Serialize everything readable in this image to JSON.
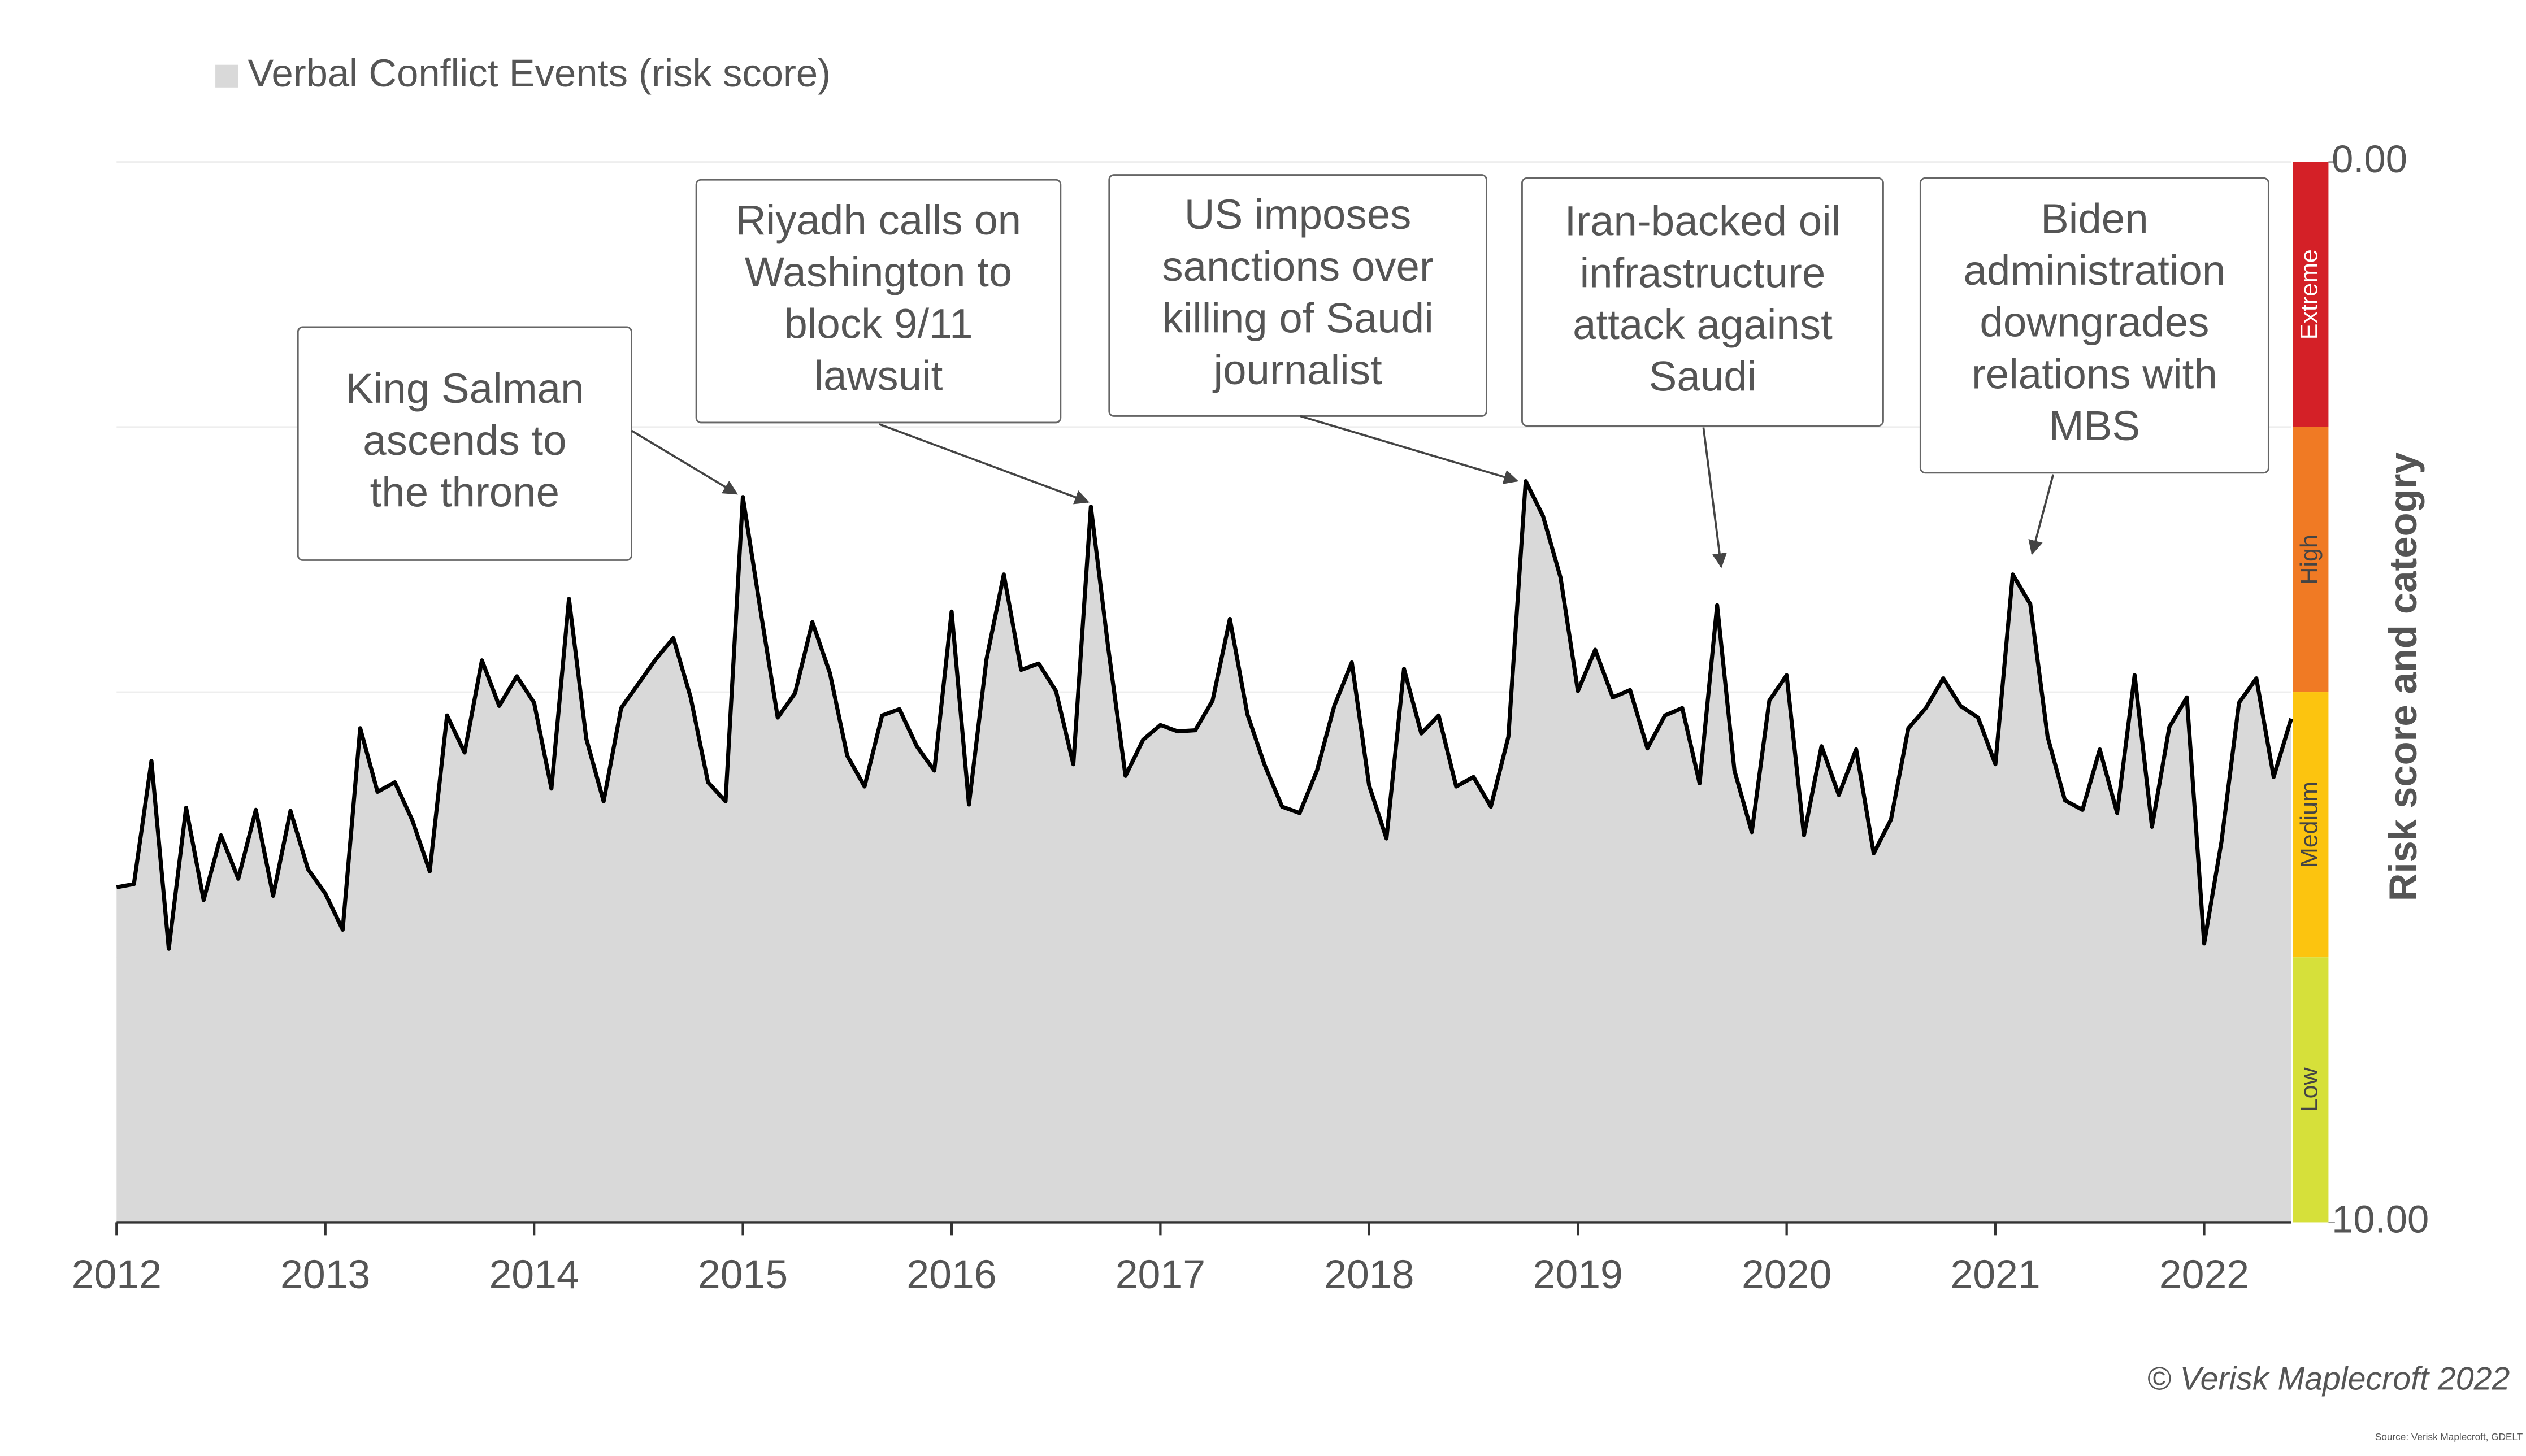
{
  "chart_data": {
    "type": "area",
    "legend_label": "Verbal Conflict Events (risk score)",
    "y_axis_label": "Risk score and cateogry",
    "copyright": "© Verisk Maplecroft 2022",
    "source": "Source: Verisk Maplecroft, GDELT",
    "xlim": [
      2012,
      2022.417
    ],
    "xticks": [
      2012,
      2013,
      2014,
      2015,
      2016,
      2017,
      2018,
      2019,
      2020,
      2021,
      2022
    ],
    "ylim": [
      0,
      10
    ],
    "y_inverted": true,
    "yticks": [
      {
        "value": 0,
        "label": "0.00"
      },
      {
        "value": 10,
        "label": "10.00"
      }
    ],
    "grid": true,
    "grid_lines": [
      0,
      2.5,
      5,
      7.5
    ],
    "risk_bands": [
      {
        "label": "Extreme",
        "from": 0,
        "to": 2.5,
        "color": "#d42027"
      },
      {
        "label": "High",
        "from": 2.5,
        "to": 5,
        "color": "#f07a24"
      },
      {
        "label": "Medium",
        "from": 5,
        "to": 7.5,
        "color": "#fcc40f"
      },
      {
        "label": "Low",
        "from": 7.5,
        "to": 10,
        "color": "#d6e03a"
      }
    ],
    "series": [
      {
        "name": "Verbal Conflict Events (risk score)",
        "color": "#d9d9d9",
        "line_color": "#000000",
        "x": [
          2012,
          2012.083,
          2012.167,
          2012.25,
          2012.333,
          2012.417,
          2012.5,
          2012.583,
          2012.667,
          2012.75,
          2012.833,
          2012.917,
          2013,
          2013.083,
          2013.167,
          2013.25,
          2013.333,
          2013.417,
          2013.5,
          2013.583,
          2013.667,
          2013.75,
          2013.833,
          2013.917,
          2014,
          2014.083,
          2014.167,
          2014.25,
          2014.333,
          2014.417,
          2014.5,
          2014.583,
          2014.667,
          2014.75,
          2014.833,
          2014.917,
          2015,
          2015.083,
          2015.167,
          2015.25,
          2015.333,
          2015.417,
          2015.5,
          2015.583,
          2015.667,
          2015.75,
          2015.833,
          2015.917,
          2016,
          2016.083,
          2016.167,
          2016.25,
          2016.333,
          2016.417,
          2016.5,
          2016.583,
          2016.667,
          2016.75,
          2016.833,
          2016.917,
          2017,
          2017.083,
          2017.167,
          2017.25,
          2017.333,
          2017.417,
          2017.5,
          2017.583,
          2017.667,
          2017.75,
          2017.833,
          2017.917,
          2018,
          2018.083,
          2018.167,
          2018.25,
          2018.333,
          2018.417,
          2018.5,
          2018.583,
          2018.667,
          2018.75,
          2018.833,
          2018.917,
          2019,
          2019.083,
          2019.167,
          2019.25,
          2019.333,
          2019.417,
          2019.5,
          2019.583,
          2019.667,
          2019.75,
          2019.833,
          2019.917,
          2020,
          2020.083,
          2020.167,
          2020.25,
          2020.333,
          2020.417,
          2020.5,
          2020.583,
          2020.667,
          2020.75,
          2020.833,
          2020.917,
          2021,
          2021.083,
          2021.167,
          2021.25,
          2021.333,
          2021.417,
          2021.5,
          2021.583,
          2021.667,
          2021.75,
          2021.833,
          2021.917,
          2022,
          2022.083,
          2022.167,
          2022.25,
          2022.333,
          2022.417
        ],
        "values": [
          6.84,
          6.81,
          5.65,
          7.42,
          6.09,
          6.96,
          6.35,
          6.76,
          6.11,
          6.92,
          6.12,
          6.67,
          6.9,
          7.24,
          5.34,
          5.94,
          5.85,
          6.21,
          6.69,
          5.22,
          5.57,
          4.7,
          5.13,
          4.85,
          5.1,
          5.91,
          4.12,
          5.44,
          6.03,
          5.15,
          4.92,
          4.69,
          4.49,
          5.05,
          5.85,
          6.03,
          3.16,
          4.21,
          5.24,
          5.01,
          4.34,
          4.82,
          5.6,
          5.89,
          5.22,
          5.16,
          5.51,
          5.74,
          4.24,
          6.06,
          4.69,
          3.89,
          4.79,
          4.73,
          4.99,
          5.68,
          3.25,
          4.58,
          5.79,
          5.45,
          5.31,
          5.37,
          5.36,
          5.08,
          4.31,
          5.21,
          5.69,
          6.08,
          6.14,
          5.74,
          5.13,
          4.72,
          5.88,
          6.38,
          4.78,
          5.39,
          5.22,
          5.89,
          5.8,
          6.08,
          5.42,
          3.01,
          3.34,
          3.92,
          4.99,
          4.6,
          5.05,
          4.98,
          5.53,
          5.22,
          5.15,
          5.86,
          4.18,
          5.74,
          6.32,
          5.08,
          4.84,
          6.35,
          5.51,
          5.97,
          5.54,
          6.52,
          6.2,
          5.34,
          5.15,
          4.87,
          5.13,
          5.24,
          5.68,
          3.89,
          4.17,
          5.42,
          6.02,
          6.11,
          5.54,
          6.14,
          4.84,
          6.27,
          5.33,
          5.05,
          7.37,
          6.41,
          5.1,
          4.87,
          5.8,
          5.25
        ]
      }
    ],
    "annotations": [
      {
        "lines": [
          "King Salman",
          "ascends to",
          "the throne"
        ]
      },
      {
        "lines": [
          "Riyadh calls on",
          "Washington to",
          "block 9/11",
          "lawsuit"
        ]
      },
      {
        "lines": [
          "US imposes",
          "sanctions over",
          "killing of Saudi",
          "journalist"
        ]
      },
      {
        "lines": [
          "Iran-backed oil",
          "infrastructure",
          "attack against",
          "Saudi"
        ]
      },
      {
        "lines": [
          "Biden",
          "administration",
          "downgrades",
          "relations with",
          "MBS"
        ]
      }
    ]
  }
}
